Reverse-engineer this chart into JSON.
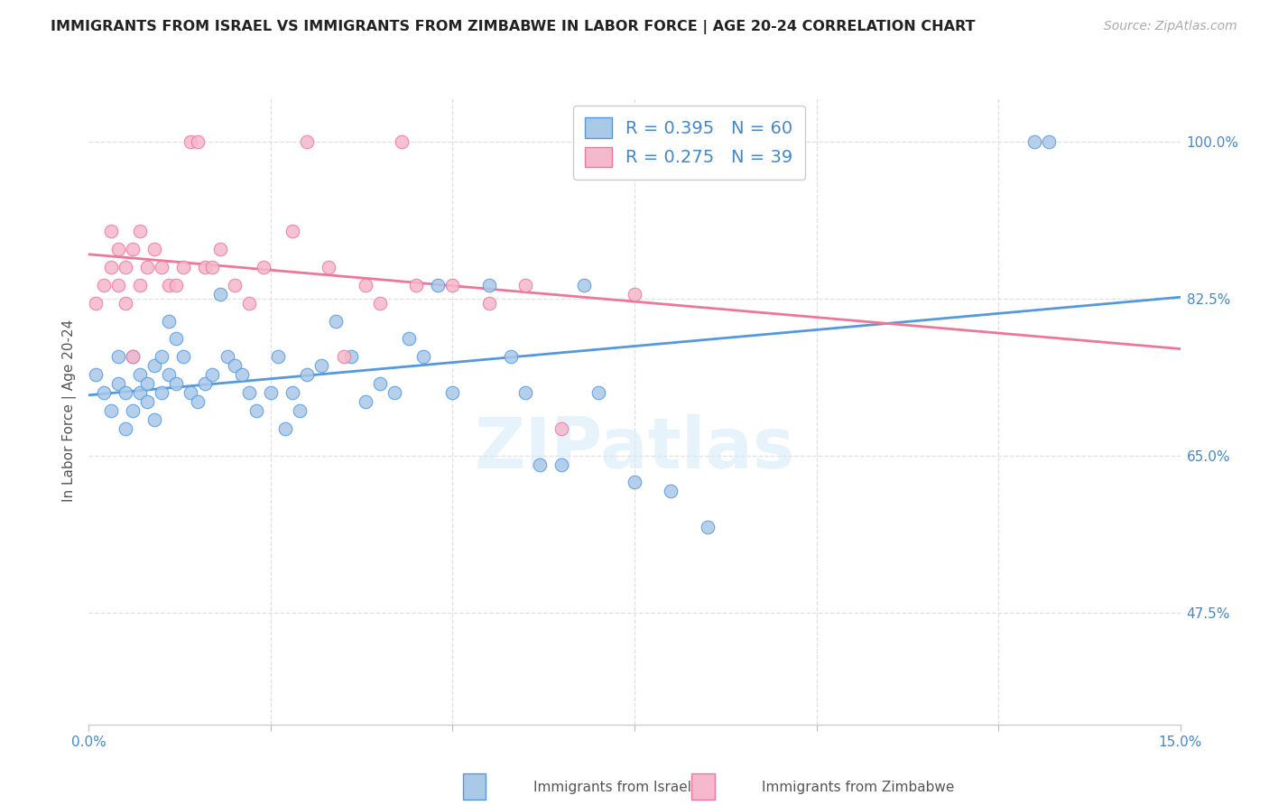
{
  "title": "IMMIGRANTS FROM ISRAEL VS IMMIGRANTS FROM ZIMBABWE IN LABOR FORCE | AGE 20-24 CORRELATION CHART",
  "source": "Source: ZipAtlas.com",
  "ylabel": "In Labor Force | Age 20-24",
  "xlim": [
    0.0,
    0.15
  ],
  "ylim": [
    0.35,
    1.05
  ],
  "r_israel": 0.395,
  "n_israel": 60,
  "r_zimbabwe": 0.275,
  "n_zimbabwe": 39,
  "color_israel": "#aac8e8",
  "color_zimbabwe": "#f5b8cc",
  "line_color_israel": "#5599dd",
  "line_color_zimbabwe": "#ee7799",
  "background_color": "#ffffff",
  "grid_color": "#e0e0e0",
  "israel_x": [
    0.001,
    0.002,
    0.003,
    0.004,
    0.004,
    0.005,
    0.005,
    0.006,
    0.006,
    0.007,
    0.007,
    0.008,
    0.008,
    0.009,
    0.009,
    0.01,
    0.01,
    0.011,
    0.011,
    0.012,
    0.012,
    0.013,
    0.014,
    0.015,
    0.016,
    0.017,
    0.018,
    0.019,
    0.02,
    0.021,
    0.022,
    0.023,
    0.025,
    0.026,
    0.027,
    0.028,
    0.029,
    0.03,
    0.032,
    0.034,
    0.036,
    0.038,
    0.04,
    0.042,
    0.044,
    0.046,
    0.048,
    0.05,
    0.055,
    0.058,
    0.06,
    0.062,
    0.065,
    0.068,
    0.07,
    0.075,
    0.08,
    0.085,
    0.13,
    0.132
  ],
  "israel_y": [
    0.74,
    0.72,
    0.7,
    0.76,
    0.73,
    0.72,
    0.68,
    0.76,
    0.7,
    0.72,
    0.74,
    0.73,
    0.71,
    0.75,
    0.69,
    0.76,
    0.72,
    0.8,
    0.74,
    0.78,
    0.73,
    0.76,
    0.72,
    0.71,
    0.73,
    0.74,
    0.83,
    0.76,
    0.75,
    0.74,
    0.72,
    0.7,
    0.72,
    0.76,
    0.68,
    0.72,
    0.7,
    0.74,
    0.75,
    0.8,
    0.76,
    0.71,
    0.73,
    0.72,
    0.78,
    0.76,
    0.84,
    0.72,
    0.84,
    0.76,
    0.72,
    0.64,
    0.64,
    0.84,
    0.72,
    0.62,
    0.61,
    0.57,
    1.0,
    1.0
  ],
  "zimbabwe_x": [
    0.001,
    0.002,
    0.003,
    0.003,
    0.004,
    0.004,
    0.005,
    0.005,
    0.006,
    0.006,
    0.007,
    0.007,
    0.008,
    0.009,
    0.01,
    0.011,
    0.012,
    0.013,
    0.014,
    0.015,
    0.016,
    0.017,
    0.018,
    0.02,
    0.022,
    0.024,
    0.028,
    0.03,
    0.033,
    0.035,
    0.038,
    0.04,
    0.043,
    0.045,
    0.05,
    0.055,
    0.06,
    0.065,
    0.075
  ],
  "zimbabwe_y": [
    0.82,
    0.84,
    0.9,
    0.86,
    0.88,
    0.84,
    0.86,
    0.82,
    0.76,
    0.88,
    0.84,
    0.9,
    0.86,
    0.88,
    0.86,
    0.84,
    0.84,
    0.86,
    1.0,
    1.0,
    0.86,
    0.86,
    0.88,
    0.84,
    0.82,
    0.86,
    0.9,
    1.0,
    0.86,
    0.76,
    0.84,
    0.82,
    1.0,
    0.84,
    0.84,
    0.82,
    0.84,
    0.68,
    0.83
  ]
}
